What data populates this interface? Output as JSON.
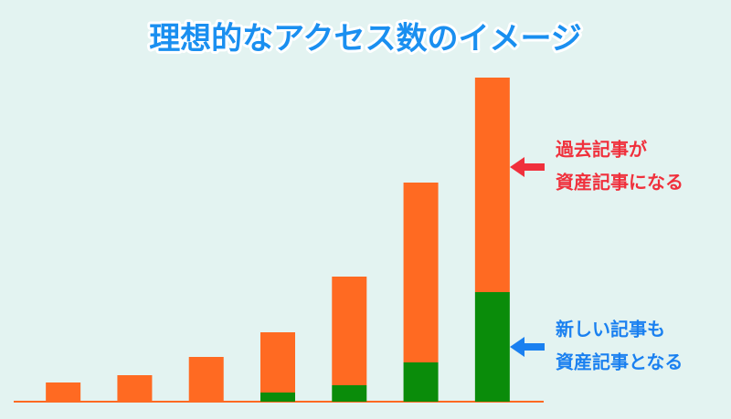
{
  "chart_data": {
    "type": "stacked-bar",
    "title": "理想的なアクセス数のイメージ",
    "categories": [
      null,
      null,
      null,
      null,
      null,
      null,
      null
    ],
    "series": [
      {
        "color": "#0a8c0a",
        "values": [
          0,
          0,
          0,
          10,
          18,
          43,
          120
        ]
      },
      {
        "color": "#ff6a22",
        "values": [
          21,
          29,
          49,
          66,
          119,
          197,
          235
        ]
      }
    ],
    "ylim": [
      0,
      360
    ],
    "annotations": [
      {
        "lines": [
          "過去記事が",
          "資産記事になる"
        ],
        "color": "#f0303c"
      },
      {
        "lines": [
          "新しい記事も",
          "資産記事となる"
        ],
        "color": "#1a80f0"
      }
    ]
  }
}
